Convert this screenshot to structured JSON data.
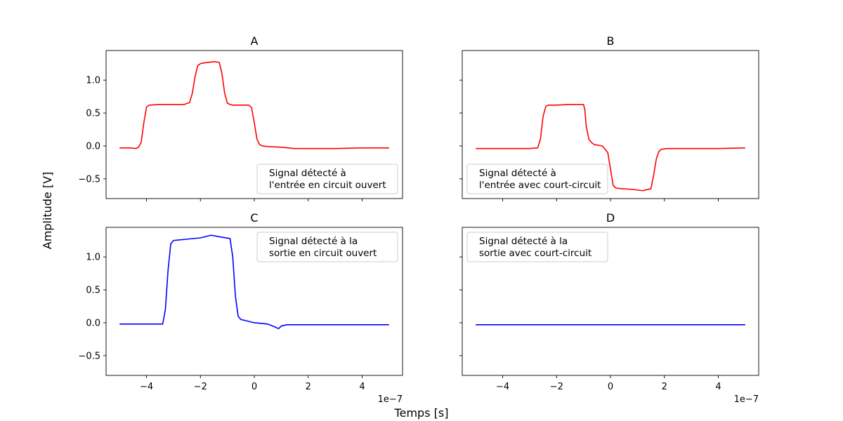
{
  "figure": {
    "xlabel": "Temps [s]",
    "ylabel": "Amplitude [V]",
    "x_offset_label": "1e−7"
  },
  "chart_data": [
    {
      "type": "line",
      "title": "A",
      "xlim": [
        -5.5e-07,
        5.5e-07
      ],
      "ylim": [
        -0.8,
        1.45
      ],
      "xticks": [
        -4e-07,
        -2e-07,
        0,
        2e-07,
        4e-07
      ],
      "xtick_labels": [
        "−4",
        "−2",
        "0",
        "2",
        "4"
      ],
      "yticks": [
        -0.5,
        0.0,
        0.5,
        1.0
      ],
      "ytick_labels": [
        "−0.5",
        "0.0",
        "0.5",
        "1.0"
      ],
      "show_xtick_labels": false,
      "show_ytick_labels": true,
      "legend_position": "lower-right",
      "series": [
        {
          "name": "Signal détecté à\nl'entrée en circuit ouvert",
          "color": "#ff0000",
          "x": [
            -5e-07,
            -4.6e-07,
            -4.4e-07,
            -4.3e-07,
            -4.2e-07,
            -4.1e-07,
            -4e-07,
            -3.9e-07,
            -3.5e-07,
            -3e-07,
            -2.6e-07,
            -2.4e-07,
            -2.3e-07,
            -2.2e-07,
            -2.1e-07,
            -2e-07,
            -1.9e-07,
            -1.5e-07,
            -1.3e-07,
            -1.2e-07,
            -1.1e-07,
            -1e-07,
            -9e-08,
            -8e-08,
            -5e-08,
            -2e-08,
            -1e-08,
            0.0,
            1e-08,
            2e-08,
            3e-08,
            5e-08,
            1e-07,
            1.5e-07,
            2e-07,
            3e-07,
            4e-07,
            5e-07
          ],
          "y": [
            -0.03,
            -0.03,
            -0.04,
            -0.02,
            0.05,
            0.35,
            0.59,
            0.62,
            0.63,
            0.63,
            0.63,
            0.66,
            0.8,
            1.05,
            1.22,
            1.25,
            1.26,
            1.28,
            1.27,
            1.1,
            0.8,
            0.65,
            0.63,
            0.62,
            0.62,
            0.62,
            0.58,
            0.35,
            0.1,
            0.02,
            0.0,
            -0.01,
            -0.02,
            -0.04,
            -0.04,
            -0.04,
            -0.03,
            -0.03
          ]
        }
      ]
    },
    {
      "type": "line",
      "title": "B",
      "xlim": [
        -5.5e-07,
        5.5e-07
      ],
      "ylim": [
        -0.8,
        1.45
      ],
      "xticks": [
        -4e-07,
        -2e-07,
        0,
        2e-07,
        4e-07
      ],
      "xtick_labels": [
        "−4",
        "−2",
        "0",
        "2",
        "4"
      ],
      "yticks": [
        -0.5,
        0.0,
        0.5,
        1.0
      ],
      "ytick_labels": [
        "−0.5",
        "0.0",
        "0.5",
        "1.0"
      ],
      "show_xtick_labels": false,
      "show_ytick_labels": false,
      "legend_position": "lower-left",
      "series": [
        {
          "name": "Signal détecté à\nl'entrée avec court-circuit",
          "color": "#ff0000",
          "x": [
            -5e-07,
            -4e-07,
            -3e-07,
            -2.7e-07,
            -2.6e-07,
            -2.5e-07,
            -2.4e-07,
            -2.3e-07,
            -2e-07,
            -1.5e-07,
            -1e-07,
            -9.5e-08,
            -9e-08,
            -8e-08,
            -7e-08,
            -6e-08,
            -3e-08,
            -1e-08,
            0.0,
            1e-08,
            2e-08,
            4e-08,
            8e-08,
            1.2e-07,
            1.5e-07,
            1.6e-07,
            1.7e-07,
            1.8e-07,
            1.9e-07,
            2.1e-07,
            3e-07,
            4e-07,
            5e-07
          ],
          "y": [
            -0.04,
            -0.04,
            -0.04,
            -0.03,
            0.1,
            0.45,
            0.6,
            0.62,
            0.62,
            0.63,
            0.63,
            0.55,
            0.3,
            0.1,
            0.05,
            0.02,
            0.0,
            -0.1,
            -0.35,
            -0.6,
            -0.64,
            -0.65,
            -0.66,
            -0.68,
            -0.65,
            -0.45,
            -0.2,
            -0.08,
            -0.05,
            -0.04,
            -0.04,
            -0.04,
            -0.03
          ]
        }
      ]
    },
    {
      "type": "line",
      "title": "C",
      "xlim": [
        -5.5e-07,
        5.5e-07
      ],
      "ylim": [
        -0.8,
        1.45
      ],
      "xticks": [
        -4e-07,
        -2e-07,
        0,
        2e-07,
        4e-07
      ],
      "xtick_labels": [
        "−4",
        "−2",
        "0",
        "2",
        "4"
      ],
      "yticks": [
        -0.5,
        0.0,
        0.5,
        1.0
      ],
      "ytick_labels": [
        "−0.5",
        "0.0",
        "0.5",
        "1.0"
      ],
      "show_xtick_labels": true,
      "show_ytick_labels": true,
      "legend_position": "upper-right",
      "series": [
        {
          "name": "Signal détecté à la\nsortie en circuit ouvert",
          "color": "#0000ff",
          "x": [
            -5e-07,
            -4e-07,
            -3.4e-07,
            -3.3e-07,
            -3.2e-07,
            -3.1e-07,
            -3e-07,
            -2.5e-07,
            -2e-07,
            -1.6e-07,
            -1.2e-07,
            -9e-08,
            -8e-08,
            -7e-08,
            -6e-08,
            -5e-08,
            -3e-08,
            0.0,
            5e-08,
            8e-08,
            9e-08,
            1e-07,
            1.2e-07,
            2e-07,
            3e-07,
            4e-07,
            5e-07
          ],
          "y": [
            -0.02,
            -0.02,
            -0.02,
            0.2,
            0.8,
            1.2,
            1.25,
            1.27,
            1.29,
            1.33,
            1.3,
            1.28,
            1.0,
            0.4,
            0.1,
            0.05,
            0.03,
            0.0,
            -0.02,
            -0.07,
            -0.09,
            -0.05,
            -0.03,
            -0.03,
            -0.03,
            -0.03,
            -0.03
          ]
        }
      ]
    },
    {
      "type": "line",
      "title": "D",
      "xlim": [
        -5.5e-07,
        5.5e-07
      ],
      "ylim": [
        -0.8,
        1.45
      ],
      "xticks": [
        -4e-07,
        -2e-07,
        0,
        2e-07,
        4e-07
      ],
      "xtick_labels": [
        "−4",
        "−2",
        "0",
        "2",
        "4"
      ],
      "yticks": [
        -0.5,
        0.0,
        0.5,
        1.0
      ],
      "ytick_labels": [
        "−0.5",
        "0.0",
        "0.5",
        "1.0"
      ],
      "show_xtick_labels": true,
      "show_ytick_labels": false,
      "legend_position": "upper-left",
      "series": [
        {
          "name": "Signal détecté à la\nsortie avec court-circuit",
          "color": "#0000ff",
          "x": [
            -5e-07,
            -2.5e-07,
            0.0,
            2.5e-07,
            5e-07
          ],
          "y": [
            -0.03,
            -0.03,
            -0.03,
            -0.03,
            -0.03
          ]
        }
      ]
    }
  ]
}
